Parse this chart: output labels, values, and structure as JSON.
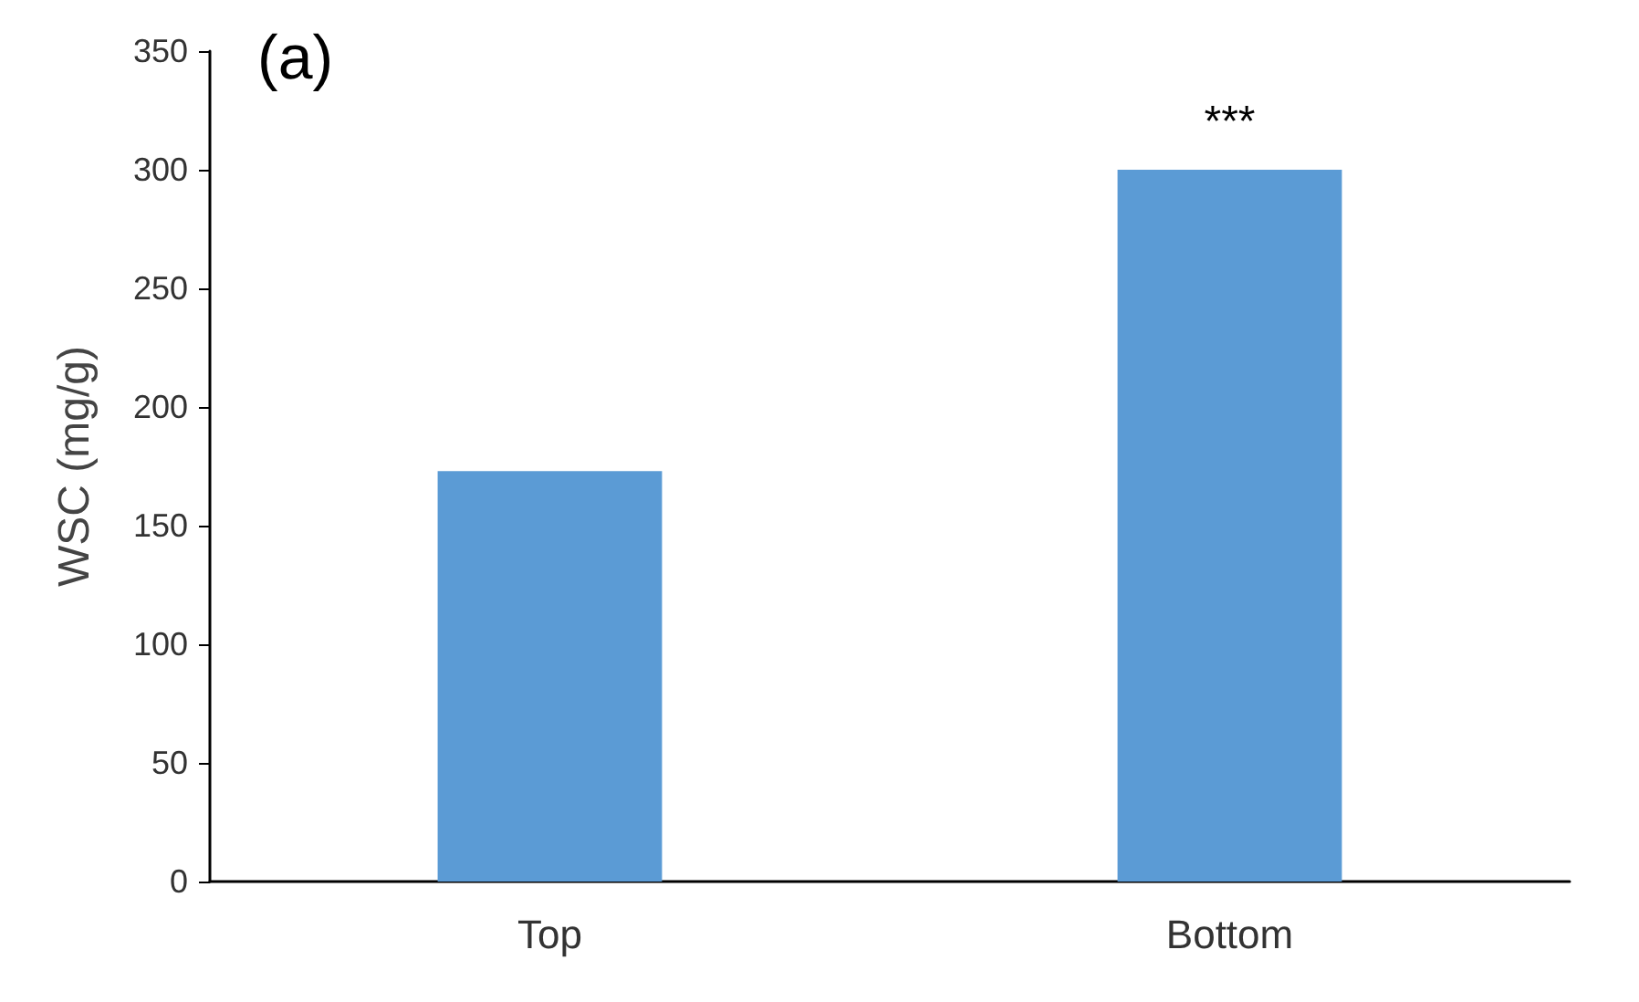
{
  "chart_data": {
    "type": "bar",
    "title": "(a)",
    "ylabel": "WSC (mg/g)",
    "categories": [
      "Top",
      "Bottom"
    ],
    "values": [
      173,
      300
    ],
    "color": "#5b9bd5",
    "ylim": [
      0,
      350
    ],
    "yticks": [
      0,
      50,
      100,
      150,
      200,
      250,
      300,
      350
    ],
    "grid": false,
    "annotations": [
      {
        "text": "***",
        "x": "Bottom",
        "y": 300
      }
    ]
  }
}
